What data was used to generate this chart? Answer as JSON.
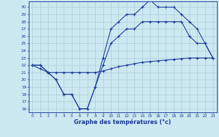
{
  "xlabel": "Graphe des températures (°c)",
  "background_color": "#cce8f0",
  "grid_color": "#aaccd8",
  "line_color": "#1a3a9a",
  "xlim": [
    -0.5,
    23.5
  ],
  "ylim": [
    15.5,
    30.8
  ],
  "yticks": [
    16,
    17,
    18,
    19,
    20,
    21,
    22,
    23,
    24,
    25,
    26,
    27,
    28,
    29,
    30
  ],
  "xticks": [
    0,
    1,
    2,
    3,
    4,
    5,
    6,
    7,
    8,
    9,
    10,
    11,
    12,
    13,
    14,
    15,
    16,
    17,
    18,
    19,
    20,
    21,
    22,
    23
  ],
  "series1_x": [
    0,
    1,
    2,
    3,
    4,
    5,
    6,
    7,
    8,
    9,
    10,
    11,
    12,
    13,
    14,
    15,
    16,
    17,
    18,
    19,
    20,
    21,
    22,
    23
  ],
  "series1_y": [
    22.0,
    21.5,
    21.0,
    21.0,
    21.0,
    21.0,
    21.0,
    21.0,
    21.0,
    21.2,
    21.5,
    21.8,
    22.0,
    22.2,
    22.4,
    22.5,
    22.6,
    22.7,
    22.8,
    22.9,
    23.0,
    23.0,
    23.0,
    23.0
  ],
  "series2_x": [
    0,
    1,
    2,
    3,
    4,
    5,
    6,
    7,
    8,
    9,
    10,
    11,
    12,
    13,
    14,
    15,
    16,
    17,
    18,
    19,
    20,
    21,
    22,
    23
  ],
  "series2_y": [
    22,
    22,
    21,
    20,
    18,
    18,
    16,
    16,
    19,
    22,
    25,
    26,
    27,
    27,
    28,
    28,
    28,
    28,
    28,
    28,
    26,
    25,
    25,
    23
  ],
  "series3_x": [
    0,
    1,
    2,
    3,
    4,
    5,
    6,
    7,
    8,
    9,
    10,
    11,
    12,
    13,
    14,
    15,
    16,
    17,
    18,
    19,
    20,
    21,
    22,
    23
  ],
  "series3_y": [
    22,
    22,
    21,
    20,
    18,
    18,
    16,
    16,
    19,
    23,
    27,
    28,
    29,
    29,
    30,
    31,
    30,
    30,
    30,
    29,
    28,
    27,
    25,
    23
  ]
}
